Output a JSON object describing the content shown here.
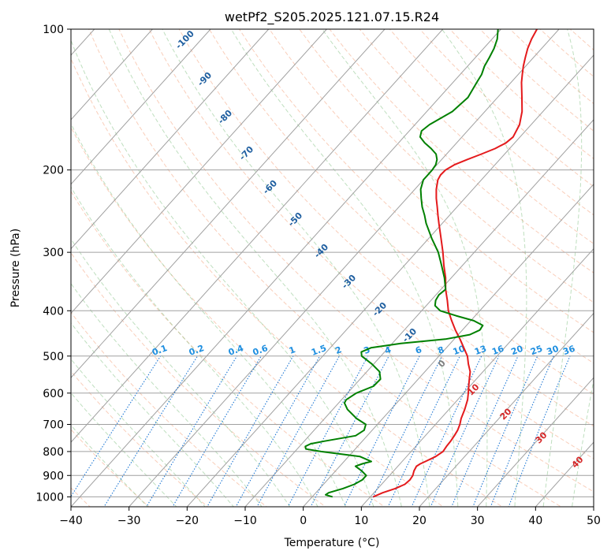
{
  "chart_data": {
    "type": "line",
    "title": "wetPf2_S205.2025.121.07.15.R24",
    "xlabel": "Temperature (°C)",
    "ylabel": "Pressure (hPa)",
    "xlim": [
      -40,
      50
    ],
    "ylim_pressure_hpa": [
      1050,
      100
    ],
    "y_scale": "log",
    "skew": "skew-T log-p",
    "grid": true,
    "x_ticks": [
      -40,
      -30,
      -20,
      -10,
      0,
      10,
      20,
      30,
      40,
      50
    ],
    "y_ticks": [
      100,
      200,
      300,
      400,
      500,
      600,
      700,
      800,
      900,
      1000
    ],
    "series": [
      {
        "color": "#e41a1c",
        "pressure": [
          1000,
          980,
          960,
          940,
          920,
          900,
          880,
          860,
          850,
          840,
          820,
          800,
          780,
          760,
          740,
          720,
          700,
          680,
          650,
          620,
          600,
          580,
          560,
          540,
          520,
          500,
          480,
          460,
          440,
          420,
          400,
          380,
          360,
          340,
          320,
          300,
          280,
          260,
          250,
          240,
          230,
          220,
          210,
          205,
          200,
          195,
          190,
          185,
          180,
          175,
          170,
          160,
          150,
          140,
          130,
          125,
          120,
          115,
          110,
          105,
          100
        ],
        "temperature": [
          10.5,
          11.5,
          13.0,
          14.0,
          14.2,
          14.0,
          13.5,
          13.2,
          13.5,
          14.0,
          15.0,
          15.5,
          15.3,
          15.2,
          15.0,
          14.7,
          14.2,
          13.5,
          12.7,
          11.7,
          10.8,
          9.8,
          8.8,
          7.8,
          6.3,
          4.9,
          3.0,
          1.0,
          -1.2,
          -3.3,
          -5.4,
          -7.2,
          -9.2,
          -11.0,
          -13.2,
          -15.4,
          -17.9,
          -20.6,
          -22.0,
          -23.4,
          -24.9,
          -26.3,
          -27.5,
          -27.8,
          -27.7,
          -27.0,
          -25.6,
          -24.0,
          -22.5,
          -21.5,
          -21.2,
          -22.0,
          -23.6,
          -25.8,
          -28.2,
          -29.3,
          -30.4,
          -31.4,
          -32.4,
          -33.2,
          -33.8
        ]
      },
      {
        "color": "#008000",
        "pressure": [
          1000,
          990,
          980,
          960,
          940,
          920,
          900,
          880,
          860,
          850,
          840,
          820,
          800,
          790,
          780,
          770,
          760,
          740,
          720,
          700,
          680,
          650,
          630,
          620,
          600,
          580,
          560,
          540,
          520,
          500,
          490,
          480,
          470,
          460,
          450,
          440,
          430,
          420,
          410,
          400,
          390,
          380,
          370,
          360,
          340,
          320,
          300,
          280,
          260,
          250,
          240,
          230,
          220,
          210,
          205,
          200,
          195,
          190,
          185,
          180,
          175,
          170,
          165,
          160,
          150,
          140,
          130,
          125,
          120,
          115,
          110,
          105,
          100
        ],
        "temperature": [
          3.5,
          2.0,
          2.2,
          4.0,
          5.3,
          6.0,
          6.0,
          4.5,
          2.7,
          3.5,
          4.7,
          2.0,
          -5.5,
          -8.5,
          -9.0,
          -8.5,
          -6.5,
          -2.0,
          -1.4,
          -2.0,
          -4.5,
          -7.5,
          -9.0,
          -9.2,
          -8.5,
          -6.6,
          -6.5,
          -7.8,
          -10.3,
          -13.3,
          -14.0,
          -13.0,
          -8.5,
          -1.5,
          2.0,
          3.0,
          2.8,
          0.5,
          -3.3,
          -6.8,
          -8.5,
          -9.2,
          -9.5,
          -9.2,
          -11.2,
          -13.6,
          -16.2,
          -19.5,
          -22.8,
          -24.3,
          -26.0,
          -27.5,
          -29.0,
          -30.0,
          -30.0,
          -30.0,
          -30.2,
          -30.8,
          -31.8,
          -33.5,
          -35.5,
          -37.2,
          -37.9,
          -37.5,
          -35.6,
          -35.1,
          -35.9,
          -36.3,
          -37.1,
          -37.6,
          -38.2,
          -39.1,
          -40.5
        ]
      }
    ],
    "background_lines": {
      "dry_adiabats_theta_c": [
        -100,
        -90,
        -80,
        -70,
        -60,
        -50,
        -40,
        -30,
        -20,
        -10,
        0,
        10,
        20,
        30,
        40,
        50,
        60,
        70,
        80,
        90,
        100,
        110,
        120,
        130,
        140,
        150,
        160,
        170,
        180,
        190,
        200,
        210,
        220,
        230
      ],
      "moist_adiabats_theta_c": [
        -30,
        -25,
        -20,
        -15,
        -10,
        -5,
        0,
        5,
        10,
        15,
        20,
        25,
        30,
        35,
        40,
        45
      ],
      "mixing_ratios_g_per_kg": [
        0.1,
        0.2,
        0.4,
        0.6,
        1,
        1.5,
        2,
        3,
        4,
        6,
        8,
        10,
        13,
        16,
        20,
        25,
        30,
        36
      ],
      "isotherm_labels": [
        "-100",
        "-90",
        "-80",
        "-70",
        "-60",
        "-50",
        "-40",
        "-30",
        "-20",
        "-10",
        "0",
        "10",
        "20",
        "30",
        "40"
      ]
    }
  }
}
